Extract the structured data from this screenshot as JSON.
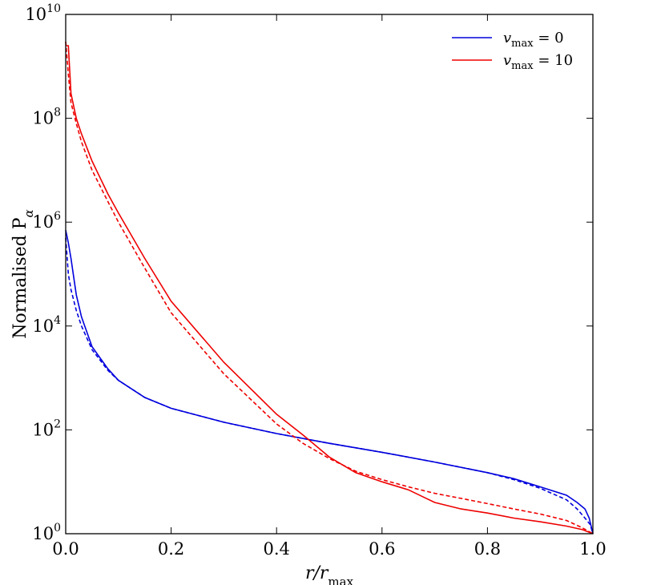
{
  "chart_data": {
    "type": "line",
    "xlabel": "r/r",
    "xlabel_sub": "max",
    "ylabel": "Normalised P",
    "ylabel_sub": "α",
    "xlim": [
      0.0,
      1.0
    ],
    "ylim": [
      1,
      10000000000
    ],
    "y_scale": "log",
    "grid": false,
    "legend_position": "top-right",
    "x_ticks": [
      "0.0",
      "0.2",
      "0.4",
      "0.6",
      "0.8",
      "1.0"
    ],
    "y_ticks": [
      {
        "base": "10",
        "exp": "0"
      },
      {
        "base": "10",
        "exp": "2"
      },
      {
        "base": "10",
        "exp": "4"
      },
      {
        "base": "10",
        "exp": "6"
      },
      {
        "base": "10",
        "exp": "8"
      },
      {
        "base": "10",
        "exp": "10"
      }
    ],
    "series": [
      {
        "name": "v_max = 0",
        "legend_var": "v",
        "legend_sub": "max",
        "legend_val": " = 0",
        "color": "#0000dd",
        "style": "solid",
        "x": [
          0.0,
          0.005,
          0.01,
          0.02,
          0.03,
          0.05,
          0.08,
          0.1,
          0.15,
          0.2,
          0.3,
          0.4,
          0.5,
          0.6,
          0.7,
          0.8,
          0.85,
          0.9,
          0.95,
          0.97,
          0.985,
          0.993,
          1.0
        ],
        "y": [
          700000,
          400000,
          200000,
          40000,
          15000,
          4000,
          1500,
          900,
          420,
          260,
          140,
          85,
          55,
          37,
          24,
          15,
          11.5,
          8,
          5.5,
          4,
          3,
          2,
          1
        ]
      },
      {
        "name": "v_max = 0 (dashed)",
        "color": "#0000dd",
        "style": "dashed",
        "x": [
          0.0,
          0.005,
          0.01,
          0.02,
          0.03,
          0.05,
          0.08,
          0.1,
          0.15,
          0.2,
          0.3,
          0.4,
          0.5,
          0.6,
          0.7,
          0.8,
          0.85,
          0.9,
          0.95,
          0.97,
          0.985,
          0.995,
          1.0
        ],
        "y": [
          500000,
          100000,
          50000,
          20000,
          10000,
          3500,
          1400,
          900,
          420,
          260,
          140,
          85,
          55,
          37,
          24,
          15,
          11,
          7.5,
          4.5,
          3,
          2,
          1.5,
          1
        ]
      },
      {
        "name": "v_max = 10",
        "legend_var": "v",
        "legend_sub": "max",
        "legend_val": " = 10",
        "color": "#ee0000",
        "style": "solid",
        "x": [
          0.0,
          0.005,
          0.01,
          0.02,
          0.03,
          0.05,
          0.08,
          0.1,
          0.15,
          0.2,
          0.3,
          0.4,
          0.45,
          0.5,
          0.55,
          0.6,
          0.65,
          0.68,
          0.7,
          0.75,
          0.8,
          0.85,
          0.9,
          0.95,
          0.98,
          1.0
        ],
        "y": [
          2500000000,
          2500000000,
          300000000,
          100000000,
          50000000,
          15000000,
          3500000,
          1500000,
          200000,
          30000,
          2000,
          200,
          80,
          30,
          15,
          10,
          7,
          5,
          4,
          3,
          2.5,
          2,
          1.7,
          1.4,
          1.2,
          1
        ]
      },
      {
        "name": "v_max = 10 (dashed)",
        "color": "#ee0000",
        "style": "dashed",
        "x": [
          0.0,
          0.005,
          0.01,
          0.02,
          0.03,
          0.05,
          0.08,
          0.1,
          0.15,
          0.2,
          0.3,
          0.4,
          0.45,
          0.5,
          0.55,
          0.6,
          0.65,
          0.7,
          0.75,
          0.8,
          0.85,
          0.9,
          0.95,
          0.98,
          1.0
        ],
        "y": [
          3000000000,
          700000000,
          200000000,
          80000000,
          35000000,
          10000000,
          2500000,
          1000000,
          130000,
          18000,
          1200,
          130,
          55,
          28,
          16,
          11,
          8,
          6,
          4.8,
          3.8,
          3,
          2.4,
          1.8,
          1.3,
          1
        ]
      }
    ]
  }
}
